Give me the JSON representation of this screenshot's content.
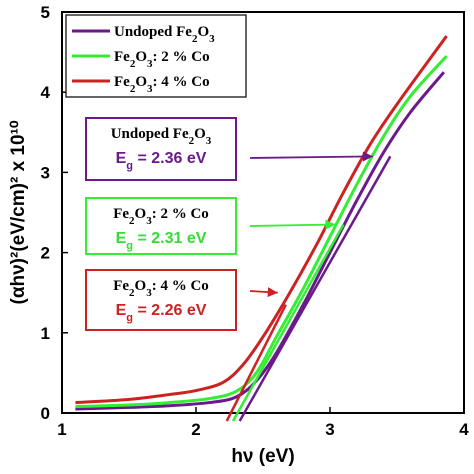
{
  "chart_data": {
    "type": "line",
    "xlabel": "hν (eV)",
    "ylabel": "(αhν)²(eV/cm)² x 10¹⁰",
    "xlim": [
      1,
      4
    ],
    "ylim": [
      0,
      5
    ],
    "x_ticks": [
      "1",
      "2",
      "3",
      "4"
    ],
    "y_ticks": [
      "0",
      "1",
      "2",
      "3",
      "4",
      "5"
    ],
    "grid": false,
    "legend_position": "top-left",
    "series": [
      {
        "name": "Undoped Fe2O3",
        "color": "#6a1a8a",
        "points": [
          [
            1.1,
            0.05
          ],
          [
            1.5,
            0.07
          ],
          [
            1.8,
            0.09
          ],
          [
            2.1,
            0.13
          ],
          [
            2.3,
            0.2
          ],
          [
            2.45,
            0.4
          ],
          [
            2.6,
            0.75
          ],
          [
            2.8,
            1.35
          ],
          [
            3.0,
            2.0
          ],
          [
            3.2,
            2.65
          ],
          [
            3.4,
            3.25
          ],
          [
            3.6,
            3.75
          ],
          [
            3.85,
            4.25
          ]
        ],
        "fit_line": [
          [
            2.36,
            0
          ],
          [
            3.45,
            3.2
          ]
        ]
      },
      {
        "name": "Fe2O3: 2% Co",
        "color": "#33ee33",
        "points": [
          [
            1.1,
            0.08
          ],
          [
            1.5,
            0.1
          ],
          [
            1.8,
            0.13
          ],
          [
            2.1,
            0.18
          ],
          [
            2.3,
            0.27
          ],
          [
            2.45,
            0.5
          ],
          [
            2.6,
            0.95
          ],
          [
            2.8,
            1.55
          ],
          [
            3.0,
            2.2
          ],
          [
            3.2,
            2.85
          ],
          [
            3.4,
            3.45
          ],
          [
            3.6,
            3.95
          ],
          [
            3.87,
            4.45
          ]
        ],
        "fit_line": [
          [
            2.31,
            0
          ],
          [
            3.1,
            2.35
          ]
        ]
      },
      {
        "name": "Fe2O3: 4% Co",
        "color": "#cc2222",
        "points": [
          [
            1.1,
            0.13
          ],
          [
            1.5,
            0.17
          ],
          [
            1.8,
            0.23
          ],
          [
            2.0,
            0.28
          ],
          [
            2.2,
            0.38
          ],
          [
            2.35,
            0.6
          ],
          [
            2.5,
            0.95
          ],
          [
            2.7,
            1.5
          ],
          [
            2.9,
            2.1
          ],
          [
            3.1,
            2.75
          ],
          [
            3.3,
            3.35
          ],
          [
            3.5,
            3.85
          ],
          [
            3.87,
            4.7
          ]
        ],
        "fit_line": [
          [
            2.26,
            0
          ],
          [
            2.67,
            1.35
          ]
        ]
      }
    ],
    "annotations": [
      {
        "name": "Undoped Fe",
        "sub": "2",
        "mid": "O",
        "sub2": "3",
        "suffix": "",
        "eg": "2.36 eV",
        "color": "#6a1a8a",
        "box": "#6a1a8a",
        "arrow_to": [
          3.38,
          3.2
        ]
      },
      {
        "name": "Fe",
        "sub": "2",
        "mid": "O",
        "sub2": "3",
        "suffix": ": 2 % Co",
        "eg": "2.31 eV",
        "color": "#33dd33",
        "box": "#33ee33",
        "arrow_to": [
          3.1,
          2.35
        ]
      },
      {
        "name": "Fe",
        "sub": "2",
        "mid": "O",
        "sub2": "3",
        "suffix": ": 4 % Co",
        "eg": "2.26 eV",
        "color": "#cc2222",
        "box": "#cc2222",
        "arrow_to": [
          2.67,
          1.5
        ]
      }
    ],
    "eg_prefix": "E",
    "eg_sub": "g",
    "eg_eq": " = "
  },
  "legend": {
    "entries": [
      {
        "base": "Undoped Fe",
        "sub": "2",
        "mid": "O",
        "sub2": "3",
        "suffix": ""
      },
      {
        "base": "Fe",
        "sub": "2",
        "mid": "O",
        "sub2": "3",
        "suffix": ": 2 % Co"
      },
      {
        "base": "Fe",
        "sub": "2",
        "mid": "O",
        "sub2": "3",
        "suffix": ": 4 % Co"
      }
    ]
  }
}
